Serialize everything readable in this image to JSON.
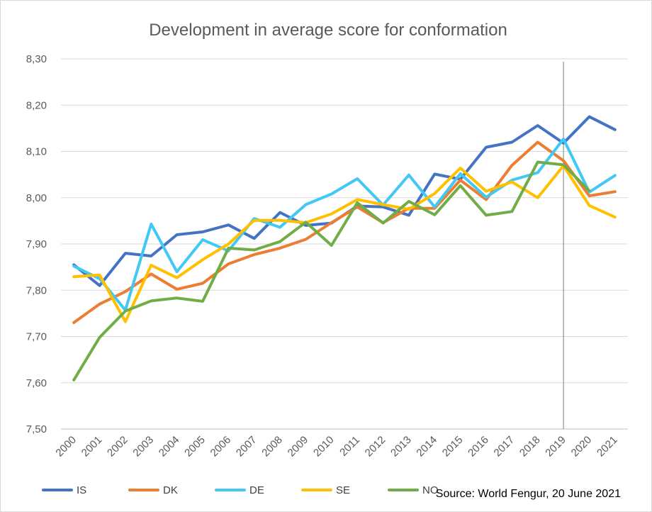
{
  "chart_data": {
    "type": "line",
    "title": "Development in average score for conformation",
    "xlabel": "",
    "ylabel": "",
    "categories": [
      "2000",
      "2001",
      "2002",
      "2003",
      "2004",
      "2005",
      "2006",
      "2007",
      "2008",
      "2009",
      "2010",
      "2011",
      "2012",
      "2013",
      "2014",
      "2015",
      "2016",
      "2017",
      "2018",
      "2019",
      "2020",
      "2021"
    ],
    "y_tick_labels": [
      "7,50",
      "7,60",
      "7,70",
      "7,80",
      "7,90",
      "8,00",
      "8,10",
      "8,20",
      "8,30"
    ],
    "ylim": [
      7.5,
      8.3
    ],
    "grid": true,
    "legend_position": "bottom-left",
    "vertical_marker_category": "2019",
    "source": "Source: World Fengur, 20 June 2021",
    "series": [
      {
        "name": "IS",
        "color": "#4472c4",
        "values": [
          7.855,
          7.81,
          7.88,
          7.874,
          7.92,
          7.926,
          7.941,
          7.912,
          7.968,
          7.94,
          7.945,
          7.982,
          7.98,
          7.962,
          8.051,
          8.04,
          8.109,
          8.12,
          8.156,
          8.118,
          8.175,
          8.147
        ]
      },
      {
        "name": "DK",
        "color": "#ed7d31",
        "values": [
          7.73,
          7.77,
          7.797,
          7.835,
          7.802,
          7.815,
          7.857,
          7.877,
          7.891,
          7.91,
          7.946,
          7.98,
          7.946,
          7.977,
          7.977,
          8.038,
          7.996,
          8.07,
          8.12,
          8.08,
          8.004,
          8.013
        ]
      },
      {
        "name": "DE",
        "color": "#42c8f4",
        "values": [
          7.852,
          7.825,
          7.757,
          7.943,
          7.84,
          7.909,
          7.885,
          7.955,
          7.936,
          7.985,
          8.008,
          8.041,
          7.984,
          8.049,
          7.98,
          8.052,
          8.001,
          8.038,
          8.054,
          8.127,
          8.012,
          8.048
        ]
      },
      {
        "name": "SE",
        "color": "#ffc000",
        "values": [
          7.829,
          7.833,
          7.732,
          7.854,
          7.827,
          7.866,
          7.9,
          7.951,
          7.951,
          7.946,
          7.965,
          7.996,
          7.985,
          7.975,
          8.009,
          8.064,
          8.014,
          8.034,
          8.0,
          8.069,
          7.983,
          7.958
        ]
      },
      {
        "name": "NO",
        "color": "#70ad47",
        "values": [
          7.606,
          7.698,
          7.755,
          7.777,
          7.783,
          7.776,
          7.891,
          7.887,
          7.905,
          7.947,
          7.897,
          7.989,
          7.945,
          7.992,
          7.963,
          8.026,
          7.962,
          7.97,
          8.077,
          8.071,
          8.015,
          null
        ]
      }
    ]
  }
}
